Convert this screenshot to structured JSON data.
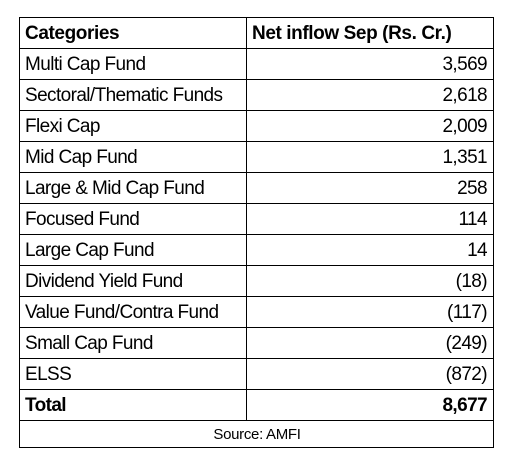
{
  "chart_data": {
    "type": "table",
    "columns": [
      "Categories",
      "Net inflow Sep (Rs. Cr.)"
    ],
    "rows": [
      {
        "category": "Multi Cap Fund",
        "value": "3,569",
        "numeric": 3569
      },
      {
        "category": "Sectoral/Thematic Funds",
        "value": "2,618",
        "numeric": 2618
      },
      {
        "category": "Flexi Cap",
        "value": "2,009",
        "numeric": 2009
      },
      {
        "category": "Mid Cap Fund",
        "value": "1,351",
        "numeric": 1351
      },
      {
        "category": "Large & Mid Cap Fund",
        "value": "258",
        "numeric": 258
      },
      {
        "category": "Focused Fund",
        "value": "114",
        "numeric": 114
      },
      {
        "category": "Large Cap Fund",
        "value": "14",
        "numeric": 14
      },
      {
        "category": "Dividend Yield Fund",
        "value": "(18)",
        "numeric": -18
      },
      {
        "category": "Value Fund/Contra Fund",
        "value": "(117)",
        "numeric": -117
      },
      {
        "category": "Small Cap Fund",
        "value": "(249)",
        "numeric": -249
      },
      {
        "category": "ELSS",
        "value": "(872)",
        "numeric": -872
      }
    ],
    "total": {
      "label": "Total",
      "value": "8,677",
      "numeric": 8677
    },
    "source": "Source: AMFI"
  }
}
